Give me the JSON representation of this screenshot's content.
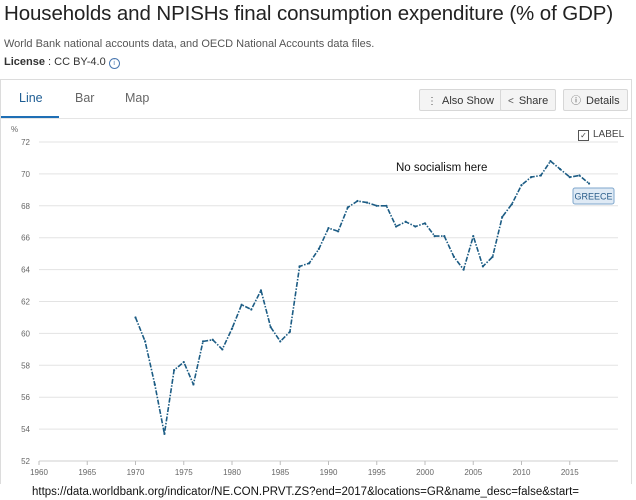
{
  "title": "Households and NPISHs final consumption expenditure (% of GDP)",
  "source": "World Bank national accounts data, and OECD National Accounts data files.",
  "license": {
    "label": "License",
    "value": "CC BY-4.0"
  },
  "tabs": [
    {
      "label": "Line",
      "active": true
    },
    {
      "label": "Bar",
      "active": false
    },
    {
      "label": "Map",
      "active": false
    }
  ],
  "actions": {
    "also_show": "Also Show",
    "share": "Share",
    "details": "Details"
  },
  "label_toggle": {
    "text": "LABEL",
    "checked": true
  },
  "url": "https://data.worldbank.org/indicator/NE.CON.PRVT.ZS?end=2017&locations=GR&name_desc=false&start=",
  "colors": {
    "series": "#1c5c84",
    "grid": "#e3e3e3",
    "accent": "#1f6fb5"
  },
  "chart_data": {
    "type": "line",
    "ylabel": "%",
    "ylim": [
      52,
      72
    ],
    "yticks": [
      52,
      54,
      56,
      58,
      60,
      62,
      64,
      66,
      68,
      70,
      72
    ],
    "xlim": [
      1960,
      2020
    ],
    "xticks": [
      1960,
      1965,
      1970,
      1975,
      1980,
      1985,
      1990,
      1995,
      2000,
      2005,
      2010,
      2015
    ],
    "grid": true,
    "line_style": "dash-dot",
    "annotation": "No socialism here",
    "series": [
      {
        "name": "GREECE",
        "x": [
          1970,
          1971,
          1972,
          1973,
          1974,
          1975,
          1976,
          1977,
          1978,
          1979,
          1980,
          1981,
          1982,
          1983,
          1984,
          1985,
          1986,
          1987,
          1988,
          1989,
          1990,
          1991,
          1992,
          1993,
          1994,
          1995,
          1996,
          1997,
          1998,
          1999,
          2000,
          2001,
          2002,
          2003,
          2004,
          2005,
          2006,
          2007,
          2008,
          2009,
          2010,
          2011,
          2012,
          2013,
          2014,
          2015,
          2016,
          2017
        ],
        "values": [
          61.0,
          59.5,
          56.8,
          53.7,
          57.7,
          58.2,
          56.8,
          59.5,
          59.6,
          59.0,
          60.3,
          61.8,
          61.5,
          62.7,
          60.4,
          59.5,
          60.1,
          64.2,
          64.4,
          65.3,
          66.6,
          66.4,
          67.9,
          68.3,
          68.2,
          68.0,
          68.0,
          66.7,
          67.0,
          66.7,
          66.9,
          66.1,
          66.1,
          64.8,
          64.0,
          66.1,
          64.2,
          64.8,
          67.3,
          68.1,
          69.3,
          69.8,
          69.9,
          70.8,
          70.3,
          69.8,
          69.9,
          69.4
        ]
      }
    ]
  }
}
